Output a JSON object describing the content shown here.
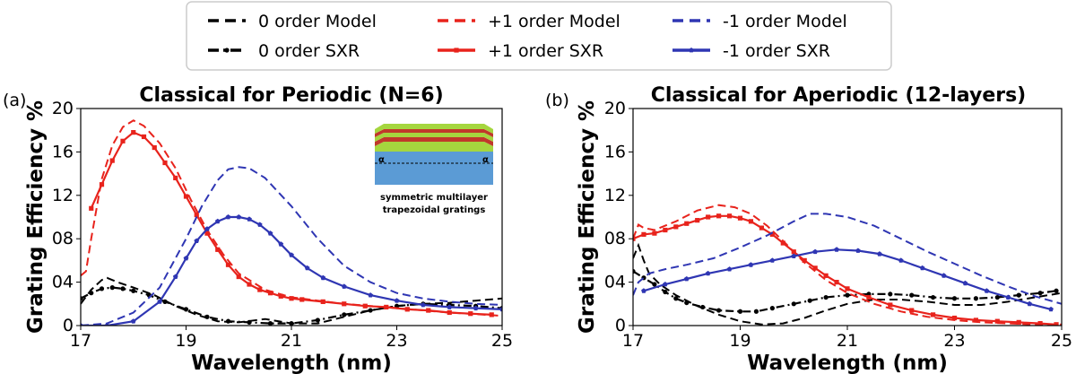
{
  "legend": {
    "entries": [
      {
        "label": "0 order Model",
        "color": "#000000",
        "style": "dashed",
        "marker": "none"
      },
      {
        "label": "+1 order Model",
        "color": "#e8231c",
        "style": "dashed",
        "marker": "none"
      },
      {
        "label": "-1 order Model",
        "color": "#2f36b3",
        "style": "dashed",
        "marker": "none"
      },
      {
        "label": "0 order SXR",
        "color": "#000000",
        "style": "dashdot",
        "marker": "circle"
      },
      {
        "label": "+1 order SXR",
        "color": "#e8231c",
        "style": "solid",
        "marker": "square"
      },
      {
        "label": "-1 order SXR",
        "color": "#2f36b3",
        "style": "solid",
        "marker": "pentagon"
      }
    ]
  },
  "inset": {
    "caption_line1": "symmetric multilayer",
    "caption_line2": "trapezoidal gratings",
    "angle_symbol": "α"
  },
  "chart_data": [
    {
      "type": "line",
      "panel_label": "(a)",
      "title": "Classical for Periodic (N=6)",
      "xlabel": "Wavelength (nm)",
      "ylabel": "Grating Efficiency %",
      "xlim": [
        17,
        25
      ],
      "ylim": [
        0,
        20
      ],
      "xticks": [
        17,
        19,
        21,
        23,
        25
      ],
      "xtick_labels": [
        "17",
        "19",
        "21",
        "23",
        "25"
      ],
      "yticks": [
        0,
        4,
        8,
        12,
        16,
        20
      ],
      "ytick_labels": [
        "0",
        "04",
        "08",
        "12",
        "16",
        "20"
      ],
      "series": [
        {
          "name": "0 order Model",
          "color": "#000000",
          "style": "dashed",
          "marker": "none",
          "x": [
            17.0,
            17.2,
            17.4,
            17.5,
            17.7,
            18.0,
            18.4,
            18.8,
            19.2,
            19.6,
            20.0,
            20.5,
            21.0,
            21.5,
            22.0,
            22.5,
            23.0,
            23.5,
            24.0,
            24.5,
            25.0
          ],
          "y": [
            2.0,
            3.3,
            4.2,
            4.4,
            4.0,
            3.5,
            2.8,
            1.8,
            1.0,
            0.4,
            0.3,
            0.6,
            0.2,
            0.2,
            0.8,
            1.4,
            1.8,
            2.0,
            2.1,
            2.3,
            2.5
          ]
        },
        {
          "name": "0 order SXR",
          "color": "#000000",
          "style": "dashdot",
          "marker": "circle",
          "x": [
            17.0,
            17.2,
            17.4,
            17.6,
            17.8,
            18.0,
            18.3,
            18.6,
            19.0,
            19.4,
            19.8,
            20.2,
            20.6,
            21.0,
            21.5,
            22.0,
            22.5,
            23.0,
            23.5,
            24.0,
            24.5,
            25.0
          ],
          "y": [
            2.5,
            3.0,
            3.4,
            3.5,
            3.4,
            3.2,
            2.8,
            2.2,
            1.5,
            0.8,
            0.4,
            0.3,
            0.2,
            0.2,
            0.5,
            1.0,
            1.4,
            1.8,
            2.0,
            1.9,
            1.8,
            1.6
          ]
        },
        {
          "name": "+1 order Model",
          "color": "#e8231c",
          "style": "dashed",
          "marker": "none",
          "x": [
            17.0,
            17.1,
            17.2,
            17.4,
            17.6,
            17.8,
            18.0,
            18.2,
            18.5,
            18.8,
            19.1,
            19.4,
            19.7,
            20.0,
            20.5,
            21.0,
            21.5,
            22.0,
            23.0,
            24.0,
            25.0
          ],
          "y": [
            4.6,
            5.0,
            8.0,
            13.5,
            16.6,
            18.3,
            18.9,
            18.4,
            16.8,
            14.5,
            11.5,
            8.8,
            6.6,
            4.8,
            3.3,
            2.6,
            2.3,
            2.0,
            1.6,
            1.2,
            0.9
          ]
        },
        {
          "name": "+1 order SXR",
          "color": "#e8231c",
          "style": "solid",
          "marker": "square",
          "x": [
            17.2,
            17.4,
            17.6,
            17.8,
            18.0,
            18.2,
            18.4,
            18.6,
            18.8,
            19.0,
            19.2,
            19.4,
            19.6,
            19.8,
            20.0,
            20.2,
            20.4,
            20.6,
            20.8,
            21.0,
            21.2,
            21.6,
            22.0,
            22.4,
            22.8,
            23.2,
            23.6,
            24.0,
            24.4,
            24.8
          ],
          "y": [
            10.8,
            13.0,
            15.2,
            17.0,
            17.8,
            17.4,
            16.4,
            15.0,
            13.6,
            11.9,
            10.2,
            8.5,
            7.0,
            5.6,
            4.5,
            3.8,
            3.3,
            3.0,
            2.7,
            2.5,
            2.4,
            2.2,
            2.0,
            1.8,
            1.7,
            1.5,
            1.4,
            1.2,
            1.1,
            1.0
          ]
        },
        {
          "name": "-1 order Model",
          "color": "#2f36b3",
          "style": "dashed",
          "marker": "none",
          "x": [
            17.0,
            17.5,
            18.0,
            18.5,
            19.0,
            19.3,
            19.6,
            19.8,
            20.0,
            20.2,
            20.5,
            21.0,
            21.5,
            22.0,
            22.5,
            23.0,
            23.5,
            24.0,
            24.5,
            25.0
          ],
          "y": [
            0.0,
            0.2,
            1.2,
            3.5,
            8.0,
            11.0,
            13.4,
            14.4,
            14.6,
            14.5,
            13.6,
            11.0,
            8.0,
            5.5,
            4.0,
            3.0,
            2.5,
            2.2,
            2.0,
            1.9
          ]
        },
        {
          "name": "-1 order SXR",
          "color": "#2f36b3",
          "style": "solid",
          "marker": "pentagon",
          "x": [
            17.0,
            17.5,
            18.0,
            18.5,
            18.8,
            19.0,
            19.2,
            19.4,
            19.6,
            19.8,
            20.0,
            20.2,
            20.4,
            20.6,
            20.8,
            21.0,
            21.3,
            21.6,
            22.0,
            22.5,
            23.0,
            23.5,
            24.0,
            24.5,
            25.0
          ],
          "y": [
            0.0,
            0.0,
            0.4,
            2.2,
            4.5,
            6.2,
            7.8,
            8.9,
            9.6,
            10.0,
            10.0,
            9.8,
            9.3,
            8.5,
            7.5,
            6.5,
            5.3,
            4.4,
            3.6,
            2.8,
            2.3,
            1.9,
            1.7,
            1.6,
            1.5
          ]
        }
      ]
    },
    {
      "type": "line",
      "panel_label": "(b)",
      "title": "Classical for Aperiodic (12-layers)",
      "xlabel": "Wavelength (nm)",
      "ylabel": "Grating Efficiency %",
      "xlim": [
        17,
        25
      ],
      "ylim": [
        0,
        20
      ],
      "xticks": [
        17,
        19,
        21,
        23,
        25
      ],
      "xtick_labels": [
        "17",
        "19",
        "21",
        "23",
        "25"
      ],
      "yticks": [
        0,
        4,
        8,
        12,
        16,
        20
      ],
      "ytick_labels": [
        "0",
        "04",
        "08",
        "12",
        "16",
        "20"
      ],
      "series": [
        {
          "name": "0 order Model",
          "color": "#000000",
          "style": "dashed",
          "marker": "none",
          "x": [
            17.0,
            17.1,
            17.2,
            17.3,
            17.5,
            17.8,
            18.2,
            18.6,
            19.0,
            19.4,
            19.8,
            20.2,
            20.6,
            21.0,
            21.5,
            22.0,
            22.5,
            23.0,
            23.5,
            24.0,
            24.5,
            25.0
          ],
          "y": [
            6.2,
            7.4,
            6.0,
            4.8,
            3.8,
            2.8,
            1.8,
            1.0,
            0.4,
            0.1,
            0.2,
            0.7,
            1.4,
            2.0,
            2.4,
            2.4,
            2.2,
            1.9,
            1.9,
            2.2,
            2.6,
            3.0
          ]
        },
        {
          "name": "0 order SXR",
          "color": "#000000",
          "style": "dashdot",
          "marker": "circle",
          "x": [
            17.0,
            17.2,
            17.4,
            17.6,
            17.8,
            18.0,
            18.3,
            18.6,
            19.0,
            19.3,
            19.6,
            20.0,
            20.3,
            20.6,
            21.0,
            21.4,
            21.8,
            22.2,
            22.6,
            23.0,
            23.4,
            23.8,
            24.2,
            24.6,
            24.9
          ],
          "y": [
            5.0,
            4.4,
            3.8,
            3.1,
            2.5,
            2.1,
            1.7,
            1.4,
            1.3,
            1.3,
            1.6,
            2.0,
            2.3,
            2.6,
            2.8,
            2.9,
            2.9,
            2.8,
            2.6,
            2.5,
            2.5,
            2.6,
            2.8,
            3.0,
            3.2
          ]
        },
        {
          "name": "+1 order Model",
          "color": "#e8231c",
          "style": "dashed",
          "marker": "none",
          "x": [
            17.0,
            17.1,
            17.2,
            17.4,
            17.8,
            18.2,
            18.6,
            18.9,
            19.2,
            19.5,
            19.8,
            20.2,
            20.6,
            21.0,
            21.5,
            22.0,
            22.5,
            23.0,
            23.5,
            24.0,
            24.5,
            25.0
          ],
          "y": [
            8.0,
            9.3,
            9.0,
            8.8,
            9.6,
            10.6,
            11.1,
            10.9,
            10.3,
            9.2,
            7.8,
            5.8,
            4.2,
            3.0,
            2.0,
            1.3,
            0.8,
            0.5,
            0.3,
            0.2,
            0.1,
            0.1
          ]
        },
        {
          "name": "+1 order SXR",
          "color": "#e8231c",
          "style": "solid",
          "marker": "square",
          "x": [
            17.0,
            17.2,
            17.4,
            17.6,
            17.8,
            18.0,
            18.2,
            18.4,
            18.6,
            18.8,
            19.0,
            19.2,
            19.4,
            19.6,
            19.8,
            20.0,
            20.2,
            20.4,
            20.6,
            20.8,
            21.0,
            21.4,
            21.8,
            22.2,
            22.6,
            23.0,
            23.4,
            23.8,
            24.2,
            24.6,
            24.9
          ],
          "y": [
            8.0,
            8.4,
            8.5,
            8.8,
            9.1,
            9.4,
            9.7,
            10.0,
            10.1,
            10.1,
            9.9,
            9.6,
            9.0,
            8.4,
            7.6,
            6.8,
            6.0,
            5.3,
            4.6,
            4.0,
            3.4,
            2.6,
            1.9,
            1.4,
            1.0,
            0.7,
            0.5,
            0.4,
            0.3,
            0.2,
            0.1
          ]
        },
        {
          "name": "-1 order Model",
          "color": "#2f36b3",
          "style": "dashed",
          "marker": "none",
          "x": [
            17.0,
            17.1,
            17.3,
            17.6,
            18.0,
            18.5,
            19.0,
            19.5,
            20.0,
            20.3,
            20.6,
            21.0,
            21.5,
            22.0,
            22.5,
            23.0,
            23.5,
            24.0,
            24.5,
            25.0
          ],
          "y": [
            2.8,
            4.0,
            4.8,
            5.2,
            5.6,
            6.2,
            7.2,
            8.3,
            9.6,
            10.3,
            10.3,
            10.0,
            9.2,
            8.0,
            6.8,
            5.7,
            4.6,
            3.6,
            2.7,
            2.0
          ]
        },
        {
          "name": "-1 order SXR",
          "color": "#2f36b3",
          "style": "solid",
          "marker": "pentagon",
          "x": [
            17.2,
            17.6,
            18.0,
            18.4,
            18.8,
            19.2,
            19.6,
            20.0,
            20.4,
            20.8,
            21.2,
            21.6,
            22.0,
            22.4,
            22.8,
            23.2,
            23.6,
            24.0,
            24.4,
            24.8
          ],
          "y": [
            3.2,
            3.8,
            4.3,
            4.8,
            5.2,
            5.6,
            6.0,
            6.4,
            6.8,
            7.0,
            6.9,
            6.6,
            6.0,
            5.3,
            4.6,
            3.9,
            3.2,
            2.6,
            2.0,
            1.5
          ]
        }
      ]
    }
  ]
}
